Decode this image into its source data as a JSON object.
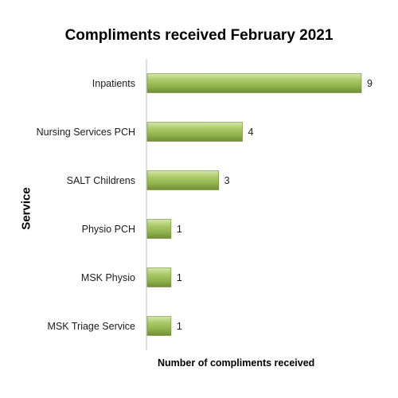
{
  "chart_data": {
    "type": "bar",
    "orientation": "horizontal",
    "title": "Compliments received February 2021",
    "xlabel": "Number of compliments received",
    "ylabel": "Service",
    "categories": [
      "Inpatients",
      "Nursing Services PCH",
      "SALT Childrens",
      "Physio PCH",
      "MSK Physio",
      "MSK Triage Service"
    ],
    "values": [
      9,
      4,
      3,
      1,
      1,
      1
    ],
    "xlim": [
      0,
      9
    ],
    "grid": false,
    "legend": "none",
    "bar_color": "#9bbb59"
  }
}
